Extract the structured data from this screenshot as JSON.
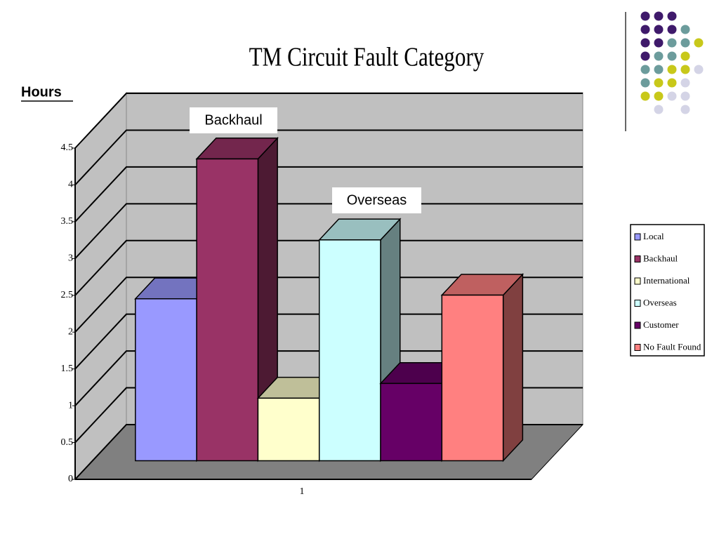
{
  "chart_data": {
    "type": "bar3d",
    "title": "TM Circuit Fault Category",
    "y_label": "Hours",
    "annotations": [
      "Backhaul",
      "Overseas"
    ],
    "categories": [
      "1"
    ],
    "series": [
      {
        "name": "Local",
        "color": "#9999ff",
        "values": [
          2.2
        ]
      },
      {
        "name": "Backhaul",
        "color": "#993366",
        "values": [
          4.1
        ]
      },
      {
        "name": "International",
        "color": "#ffffcc",
        "values": [
          0.85
        ]
      },
      {
        "name": "Overseas",
        "color": "#ccffff",
        "values": [
          3.0
        ]
      },
      {
        "name": "Customer",
        "color": "#660066",
        "values": [
          1.05
        ]
      },
      {
        "name": "No Fault Found",
        "color": "#ff8080",
        "values": [
          2.25
        ]
      }
    ],
    "ylim": [
      0,
      4.5
    ],
    "yticks": [
      0,
      0.5,
      1,
      1.5,
      2,
      2.5,
      3,
      3.5,
      4,
      4.5
    ],
    "grid": true
  }
}
